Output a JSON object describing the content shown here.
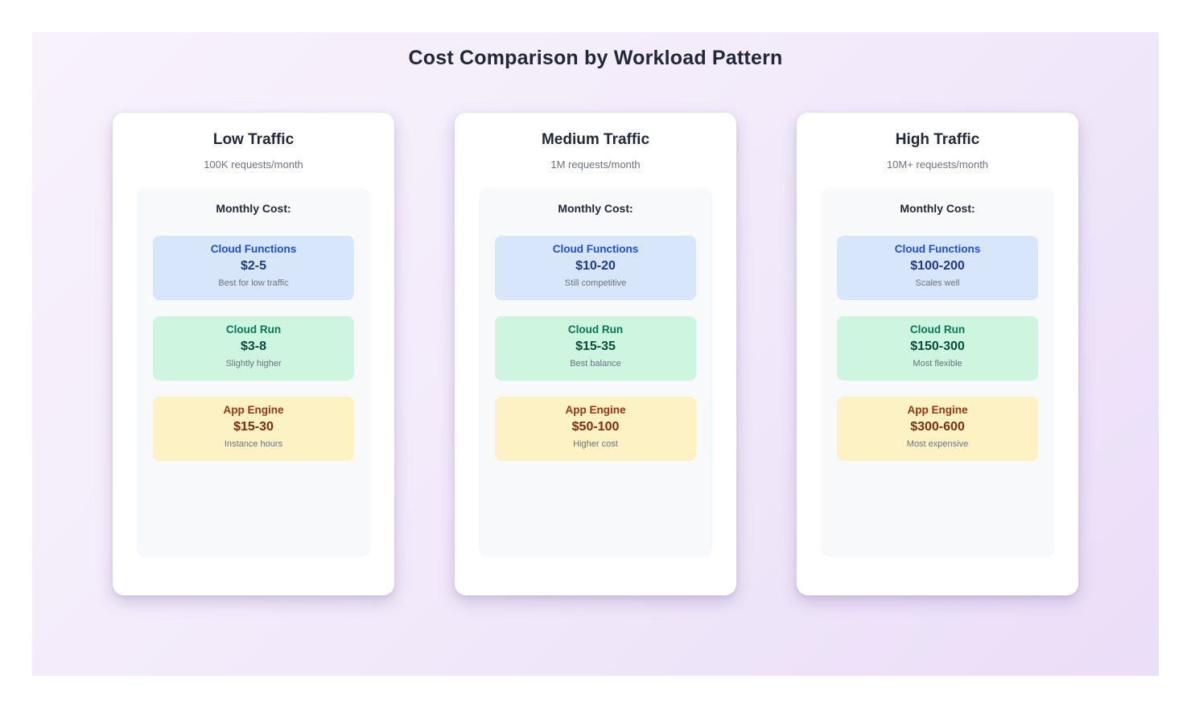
{
  "page": {
    "title": "Cost Comparison by Workload Pattern"
  },
  "colors": {
    "panel_gradient_start": "#f8f2fc",
    "panel_gradient_end": "#eadef8",
    "card_background": "#ffffff",
    "cost_box_background": "#f8f9fb",
    "cloud_functions_bg": "#d8e6fb",
    "cloud_functions_title": "#1d4ed8",
    "cloud_functions_price": "#1e3a8a",
    "cloud_run_bg": "#cdf5df",
    "cloud_run_title": "#047857",
    "cloud_run_price": "#064e3b",
    "app_engine_bg": "#fdf2c4",
    "app_engine_title": "#9a3412",
    "app_engine_price": "#7c2d12",
    "note_text": "#6b7280"
  },
  "cards": [
    {
      "title": "Low Traffic",
      "subtitle": "100K requests/month",
      "cost_label": "Monthly Cost:",
      "options": [
        {
          "name": "Cloud Functions",
          "price": "$2-5",
          "note": "Best for low traffic"
        },
        {
          "name": "Cloud Run",
          "price": "$3-8",
          "note": "Slightly higher"
        },
        {
          "name": "App Engine",
          "price": "$15-30",
          "note": "Instance hours"
        }
      ]
    },
    {
      "title": "Medium Traffic",
      "subtitle": "1M requests/month",
      "cost_label": "Monthly Cost:",
      "options": [
        {
          "name": "Cloud Functions",
          "price": "$10-20",
          "note": "Still competitive"
        },
        {
          "name": "Cloud Run",
          "price": "$15-35",
          "note": "Best balance"
        },
        {
          "name": "App Engine",
          "price": "$50-100",
          "note": "Higher cost"
        }
      ]
    },
    {
      "title": "High Traffic",
      "subtitle": "10M+ requests/month",
      "cost_label": "Monthly Cost:",
      "options": [
        {
          "name": "Cloud Functions",
          "price": "$100-200",
          "note": "Scales well"
        },
        {
          "name": "Cloud Run",
          "price": "$150-300",
          "note": "Most flexible"
        },
        {
          "name": "App Engine",
          "price": "$300-600",
          "note": "Most expensive"
        }
      ]
    }
  ]
}
